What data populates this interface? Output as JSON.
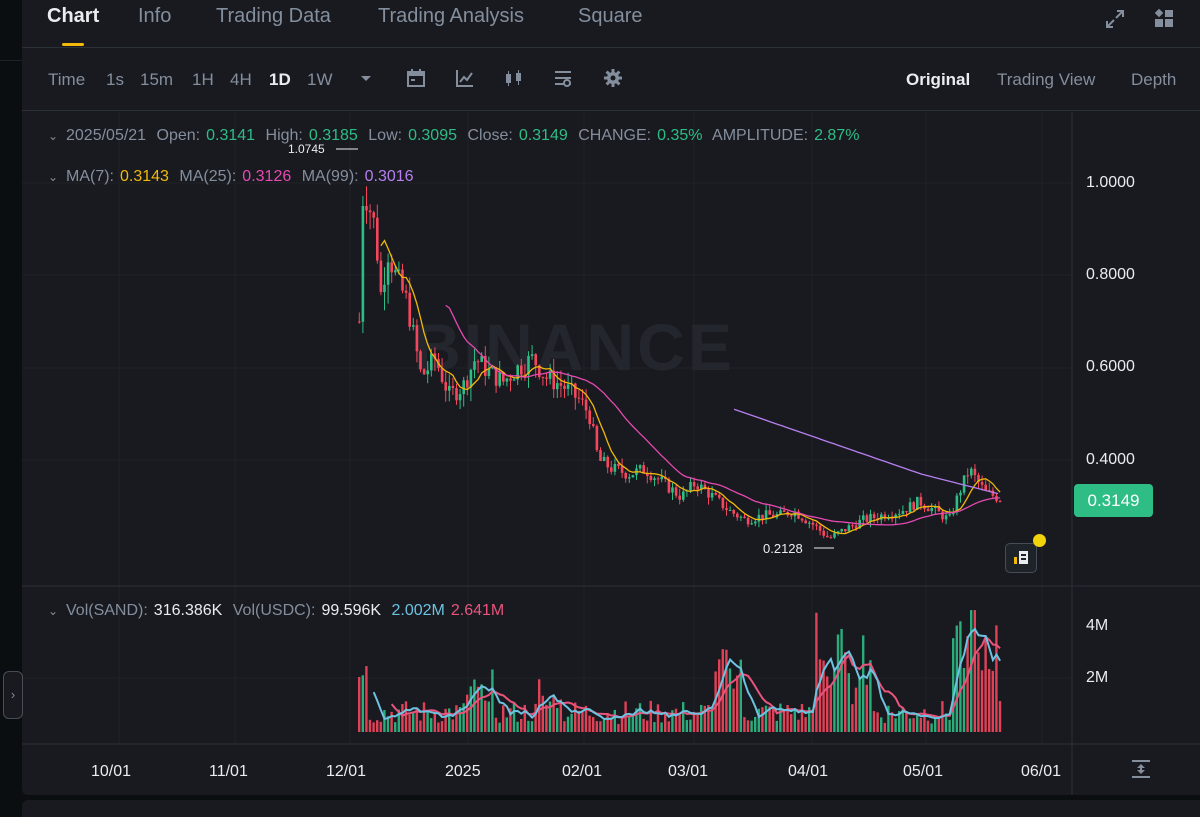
{
  "tabs": [
    {
      "label": "Chart",
      "active": true
    },
    {
      "label": "Info"
    },
    {
      "label": "Trading Data"
    },
    {
      "label": "Trading Analysis"
    },
    {
      "label": "Square"
    }
  ],
  "toolbar": {
    "intervals": [
      "Time",
      "1s",
      "15m",
      "1H",
      "4H",
      "1D",
      "1W"
    ],
    "active_interval": "1D",
    "views": [
      "Original",
      "Trading View",
      "Depth"
    ],
    "active_view": "Original"
  },
  "ohlc": {
    "date": "2025/05/21",
    "open_label": "Open:",
    "open": "0.3141",
    "high_label": "High:",
    "high": "0.3185",
    "low_label": "Low:",
    "low": "0.3095",
    "close_label": "Close:",
    "close": "0.3149",
    "change_label": "CHANGE:",
    "change": "0.35%",
    "amplitude_label": "AMPLITUDE:",
    "amplitude": "2.87%"
  },
  "ma": {
    "ma7_label": "MA(7):",
    "ma7": "0.3143",
    "ma25_label": "MA(25):",
    "ma25": "0.3126",
    "ma99_label": "MA(99):",
    "ma99": "0.3016"
  },
  "volume": {
    "sand_label": "Vol(SAND):",
    "sand": "316.386K",
    "usdc_label": "Vol(USDC):",
    "usdc": "99.596K",
    "ma1": "2.002M",
    "ma2": "2.641M"
  },
  "price_axis": [
    "1.0000",
    "0.8000",
    "0.6000",
    "0.4000"
  ],
  "volume_axis": [
    "4M",
    "2M"
  ],
  "time_axis": [
    "10/01",
    "11/01",
    "12/01",
    "2025",
    "02/01",
    "03/01",
    "04/01",
    "05/01",
    "06/01"
  ],
  "current_price": "0.3149",
  "annotations": {
    "high": "1.0745",
    "low": "0.2128"
  },
  "watermark": "BINANCE",
  "colors": {
    "up": "#2ebd85",
    "down": "#f6465d",
    "ma7": "#f0b90b",
    "ma25": "#e649b1",
    "ma99": "#b77ff0",
    "vol_ma1": "#6cc2e0",
    "vol_ma2": "#e9547c",
    "accent": "#f0b90b"
  },
  "icons": [
    "fullscreen-icon",
    "layout-grid-icon",
    "dropdown-caret-icon",
    "calendar-icon",
    "indicator-icon",
    "candle-type-icon",
    "settings-list-icon",
    "gear-icon",
    "order-book-icon",
    "expand-arrow-icon",
    "fit-vertical-icon"
  ]
}
